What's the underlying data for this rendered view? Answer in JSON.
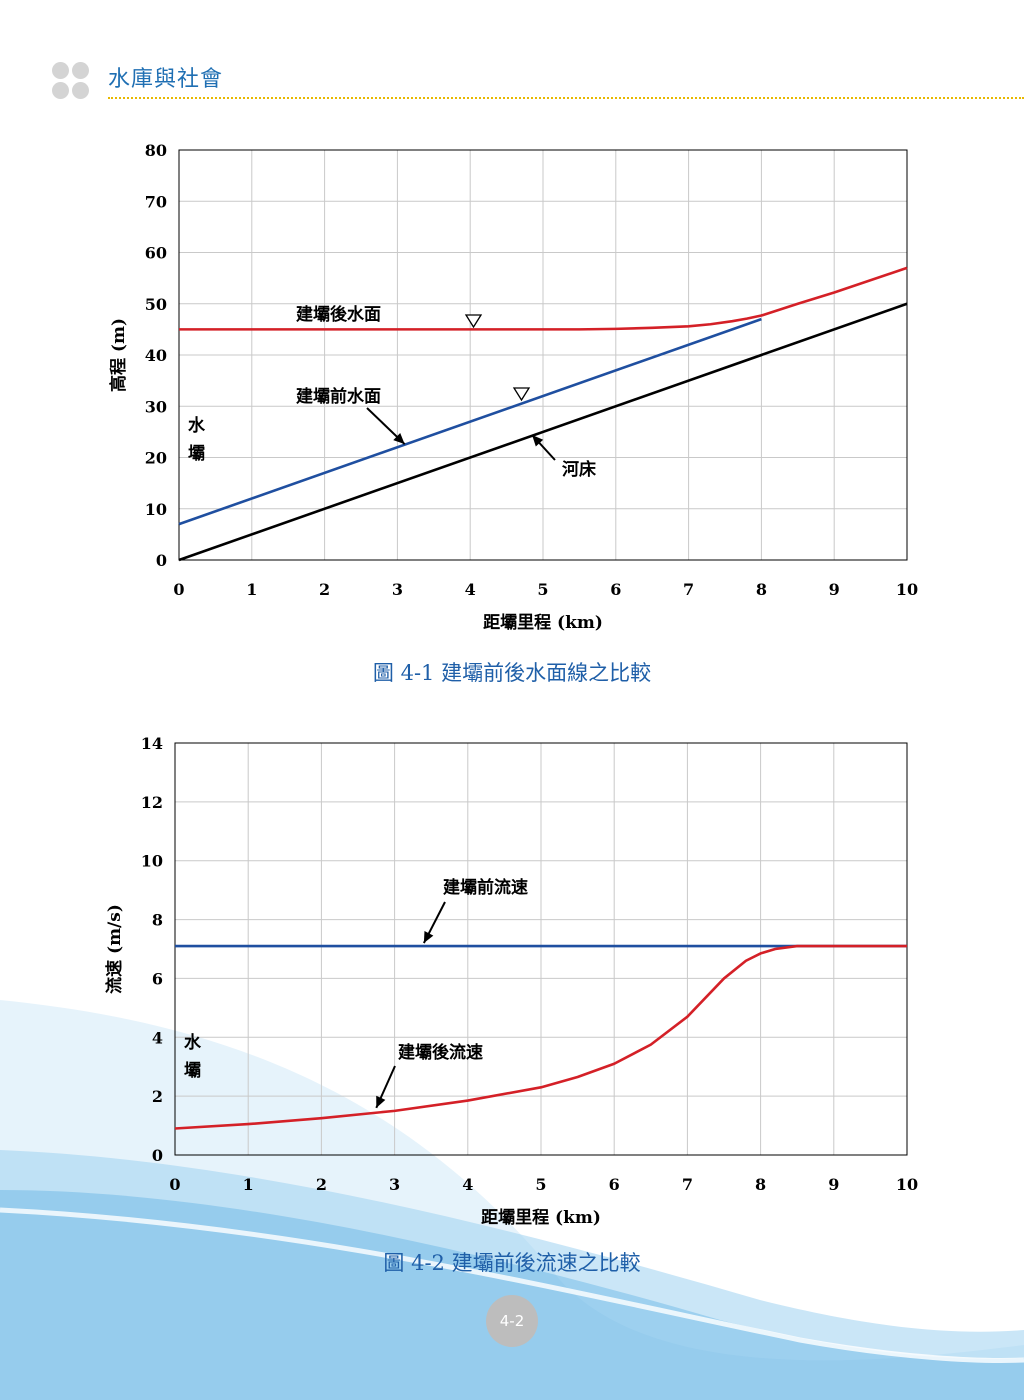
{
  "header": {
    "title": "水庫與社會"
  },
  "figures": [
    {
      "caption": "圖 4-1  建壩前後水面線之比較",
      "labels": {
        "after": "建壩後水面",
        "before": "建壩前水面",
        "bed": "河床",
        "dam": "水壩"
      }
    },
    {
      "caption": "圖 4-2  建壩前後流速之比較",
      "labels": {
        "before": "建壩前流速",
        "after": "建壩後流速",
        "dam": "水壩"
      }
    }
  ],
  "page_number": "4-2",
  "colors": {
    "header_blue": "#1f6fb3",
    "header_rule": "#e8b800",
    "series_red": "#d42027",
    "series_blue": "#1f4fa0",
    "series_black": "#000000",
    "caption_blue": "#1f5fa8"
  },
  "chart_data": [
    {
      "type": "line",
      "xlabel": "距壩里程 (km)",
      "ylabel": "高程 (m)",
      "xlim": [
        0,
        10
      ],
      "ylim": [
        0,
        80
      ],
      "xticks": [
        0,
        1,
        2,
        3,
        4,
        5,
        6,
        7,
        8,
        9,
        10
      ],
      "yticks": [
        0,
        10,
        20,
        30,
        40,
        50,
        60,
        70,
        80
      ],
      "grid": true,
      "series": [
        {
          "name": "建壩後水面",
          "color": "#d42027",
          "x": [
            0,
            1,
            2,
            3,
            4,
            5,
            5.5,
            6,
            6.5,
            7,
            7.3,
            7.6,
            7.8,
            8.0,
            8.5,
            9,
            10
          ],
          "y": [
            45,
            45,
            45,
            45,
            45,
            45,
            45,
            45.1,
            45.3,
            45.6,
            46.0,
            46.6,
            47.1,
            47.7,
            50,
            52.2,
            57
          ]
        },
        {
          "name": "建壩前水面",
          "color": "#1f4fa0",
          "x": [
            0,
            8
          ],
          "y": [
            7,
            47
          ]
        },
        {
          "name": "河床",
          "color": "#000000",
          "x": [
            0,
            10
          ],
          "y": [
            0,
            50
          ]
        }
      ]
    },
    {
      "type": "line",
      "xlabel": "距壩里程 (km)",
      "ylabel": "流速 (m/s)",
      "xlim": [
        0,
        10
      ],
      "ylim": [
        0,
        14
      ],
      "xticks": [
        0,
        1,
        2,
        3,
        4,
        5,
        6,
        7,
        8,
        9,
        10
      ],
      "yticks": [
        0,
        2,
        4,
        6,
        8,
        10,
        12,
        14
      ],
      "grid": true,
      "series": [
        {
          "name": "建壩前流速",
          "color": "#1f4fa0",
          "x": [
            0,
            10
          ],
          "y": [
            7.1,
            7.1
          ]
        },
        {
          "name": "建壩後流速",
          "color": "#d42027",
          "x": [
            0,
            1,
            2,
            3,
            4,
            5,
            5.5,
            6,
            6.5,
            7,
            7.5,
            7.8,
            8.0,
            8.2,
            8.5,
            9,
            10
          ],
          "y": [
            0.9,
            1.05,
            1.25,
            1.5,
            1.85,
            2.3,
            2.65,
            3.1,
            3.75,
            4.7,
            6.0,
            6.6,
            6.85,
            7.0,
            7.1,
            7.1,
            7.1
          ]
        }
      ]
    }
  ]
}
